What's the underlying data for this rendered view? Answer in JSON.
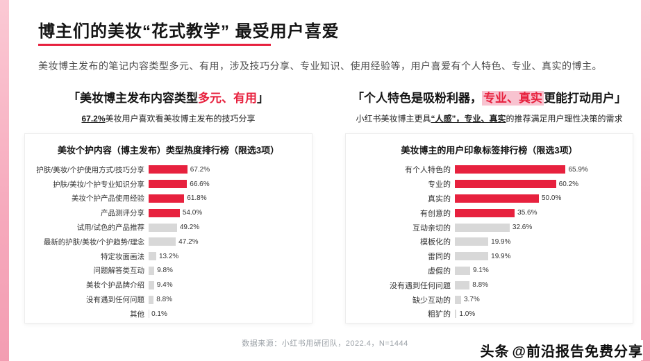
{
  "theme": {
    "accent": "#e7213e",
    "bar_default": "#d8d8d8",
    "strip_pink": "#f6a9bc",
    "highlight_bg": "#f8c3d0"
  },
  "page": {
    "title_main": "博主们的美妆“花式教学”",
    "title_tail": " 最受用户喜爱",
    "subtitle": "美妆博主发布的笔记内容类型多元、有用，涉及技巧分享、专业知识、使用经验等，用户喜爱有个人特色、专业、真实的博主。",
    "source": "数据来源：小红书用研团队，2022.4，N=1444",
    "watermark_brand": "头条",
    "watermark_handle": "@前沿报告免费分享"
  },
  "sections": {
    "left": {
      "header_pre": "「美妆博主发布内容类型",
      "header_highlight": "多元、有用",
      "header_post": "」",
      "sub_bold": "67.2%",
      "sub_rest": "美妆用户喜欢看美妆博主发布的技巧分享"
    },
    "right": {
      "header_pre": "「个人特色是吸粉利器，",
      "header_highlight": "专业、真实",
      "header_post": "更能打动用户」",
      "sub_pre": "小红书美妆博主更具",
      "sub_bold": "“人感”，专业、真实",
      "sub_post": "的推荐满足用户理性决策的需求"
    }
  },
  "chart_data": [
    {
      "type": "bar",
      "orientation": "horizontal",
      "title": "美妆个护内容（博主发布）类型热度排行榜（限选3项）",
      "categories": [
        "护肤/美妆/个护使用方式/技巧分享",
        "护肤/美妆/个护专业知识分享",
        "美妆个护产品使用经验",
        "产品测评分享",
        "试用/试色的产品推荐",
        "最新的护肤/美妆/个护趋势/理念",
        "特定妆面画法",
        "问题解答类互动",
        "美妆个护品牌介绍",
        "没有遇到任何问题",
        "其他"
      ],
      "values": [
        67.2,
        66.6,
        61.8,
        54.0,
        49.2,
        47.2,
        13.2,
        9.8,
        9.4,
        8.8,
        0.1
      ],
      "value_labels": [
        "67.2%",
        "66.6%",
        "61.8%",
        "54.0%",
        "49.2%",
        "47.2%",
        "13.2%",
        "9.8%",
        "9.4%",
        "8.8%",
        "0.1%"
      ],
      "highlight_count": 4,
      "highlight_color": "#e7213e",
      "default_color": "#d8d8d8",
      "xlim": [
        0,
        70
      ],
      "legend": false,
      "grid": false
    },
    {
      "type": "bar",
      "orientation": "horizontal",
      "title": "美妆博主的用户印象标签排行榜（限选3项）",
      "categories": [
        "有个人特色的",
        "专业的",
        "真实的",
        "有创意的",
        "互动亲切的",
        "模板化的",
        "雷同的",
        "虚假的",
        "没有遇到任何问题",
        "缺少互动的",
        "粗犷的"
      ],
      "values": [
        65.9,
        60.2,
        50.0,
        35.6,
        32.6,
        19.9,
        19.9,
        9.1,
        8.8,
        3.7,
        1.0
      ],
      "value_labels": [
        "65.9%",
        "60.2%",
        "50.0%",
        "35.6%",
        "32.6%",
        "19.9%",
        "19.9%",
        "9.1%",
        "8.8%",
        "3.7%",
        "1.0%"
      ],
      "highlight_count": 4,
      "highlight_color": "#e7213e",
      "default_color": "#d8d8d8",
      "xlim": [
        0,
        70
      ],
      "legend": false,
      "grid": false
    }
  ]
}
